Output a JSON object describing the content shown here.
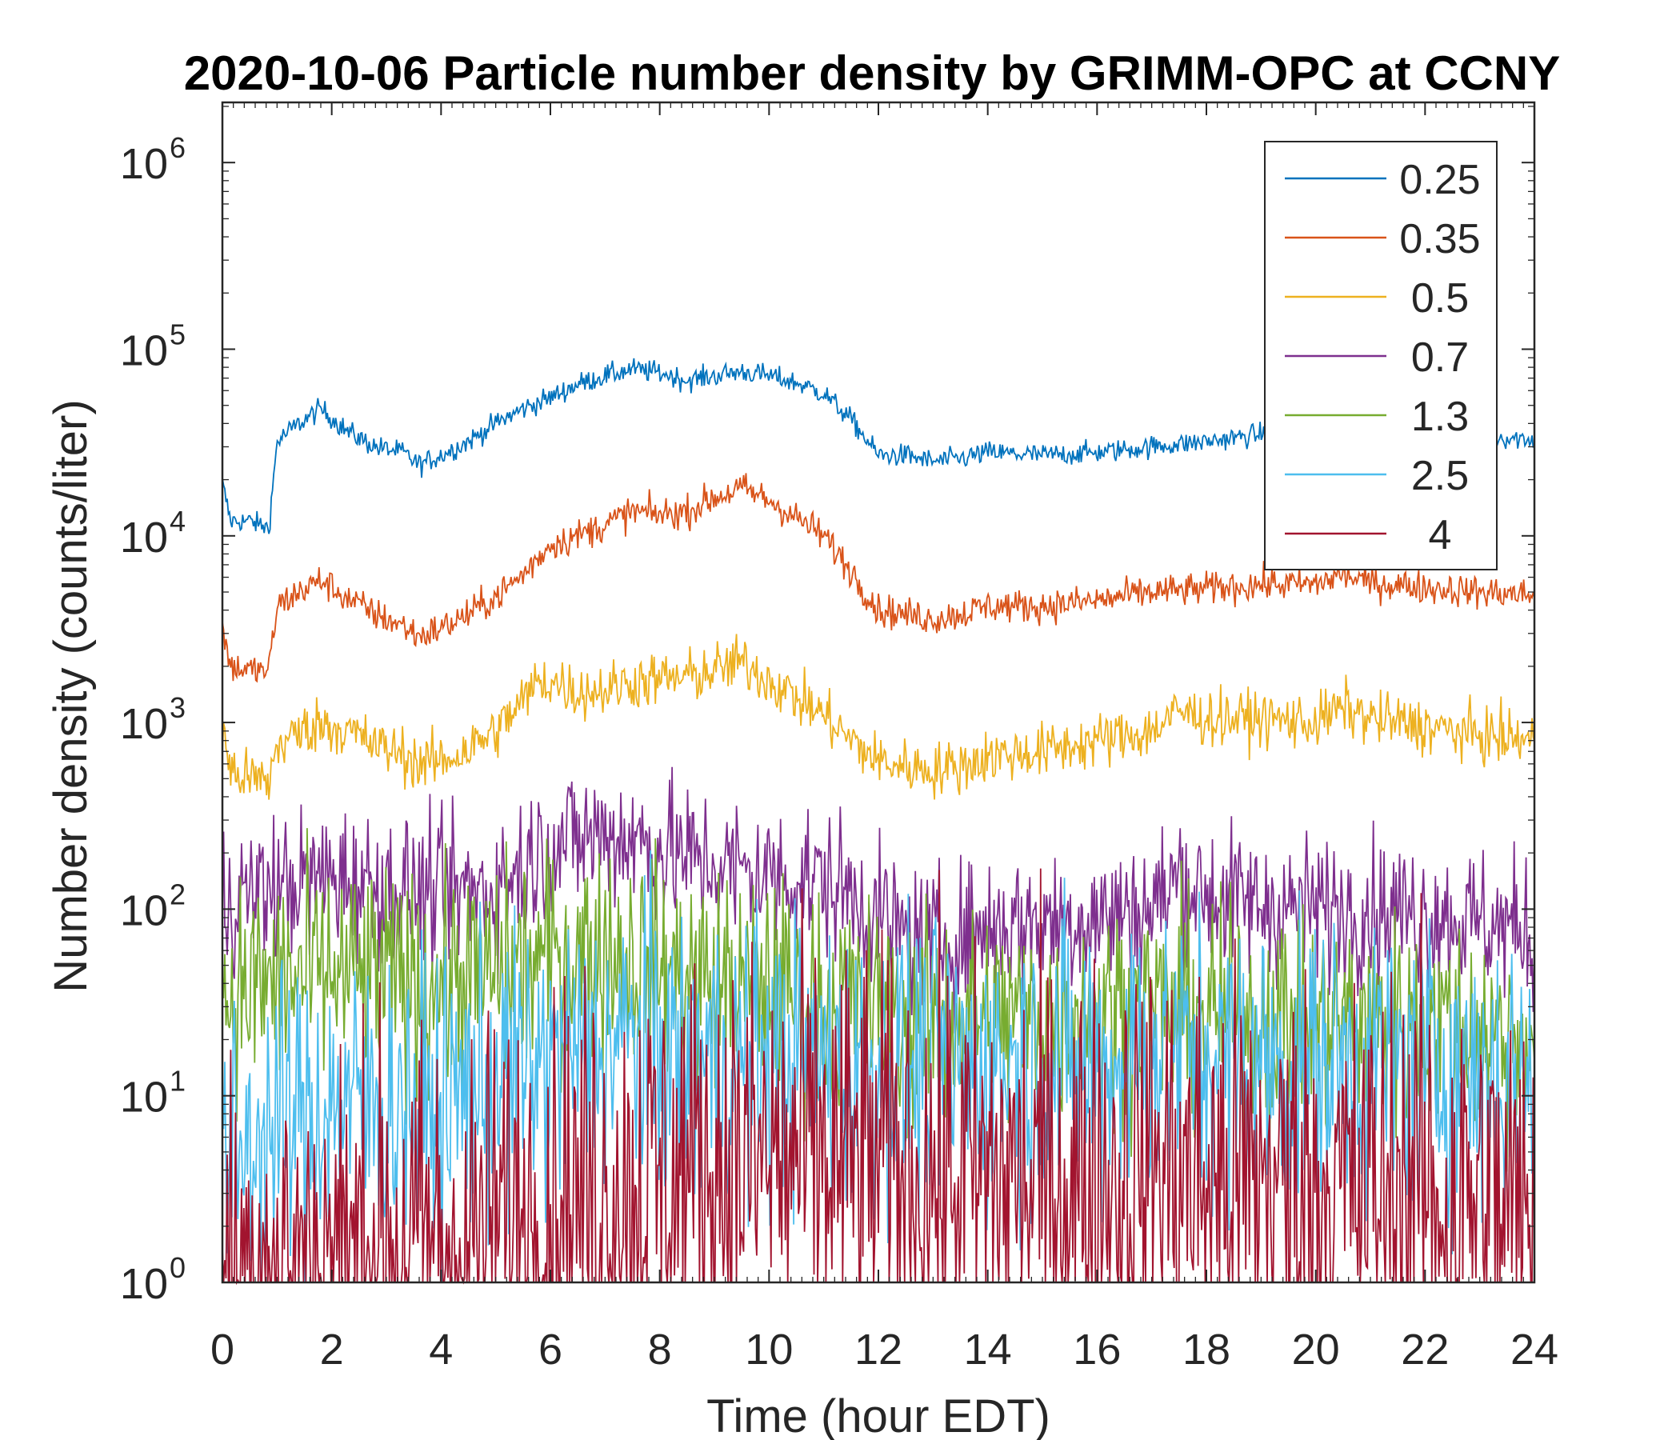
{
  "chart_data": {
    "type": "line",
    "title": "2020-10-06 Particle number density by GRIMM-OPC at CCNY",
    "xlabel": "Time (hour EDT)",
    "ylabel": "Number density (counts/liter)",
    "xlim": [
      0,
      24
    ],
    "ylim": [
      1,
      2000000
    ],
    "yscale": "log",
    "x_ticks": [
      0,
      2,
      4,
      6,
      8,
      10,
      12,
      14,
      16,
      18,
      20,
      22,
      24
    ],
    "x_tick_labels": [
      "0",
      "2",
      "4",
      "6",
      "8",
      "10",
      "12",
      "14",
      "16",
      "18",
      "20",
      "22",
      "24"
    ],
    "y_ticks": [
      1,
      10,
      100,
      1000,
      10000,
      100000,
      1000000
    ],
    "y_tick_labels": [
      {
        "base": "10",
        "exp": "0"
      },
      {
        "base": "10",
        "exp": "1"
      },
      {
        "base": "10",
        "exp": "2"
      },
      {
        "base": "10",
        "exp": "3"
      },
      {
        "base": "10",
        "exp": "4"
      },
      {
        "base": "10",
        "exp": "5"
      },
      {
        "base": "10",
        "exp": "6"
      }
    ],
    "legend_position": "top-right",
    "series": [
      {
        "name": "0.25",
        "color": "#0072BD",
        "noise": 0.03,
        "x": [
          0,
          0.15,
          0.5,
          0.85,
          1.0,
          1.3,
          1.8,
          2.3,
          2.8,
          3.3,
          3.6,
          4.0,
          4.5,
          5.0,
          5.5,
          6.0,
          6.5,
          7.0,
          7.5,
          8.0,
          8.5,
          9.0,
          9.5,
          10.0,
          10.5,
          11.0,
          11.5,
          12.0,
          12.5,
          13.0,
          13.5,
          14.0,
          15.0,
          16.0,
          17.0,
          18.0,
          19.0,
          20.0,
          21.0,
          22.0,
          23.0,
          24.0
        ],
        "values": [
          19000,
          12000,
          12000,
          11000,
          32000,
          38000,
          48000,
          36000,
          30000,
          28000,
          24000,
          27000,
          32000,
          40000,
          48000,
          55000,
          65000,
          72000,
          78000,
          75000,
          68000,
          72000,
          76000,
          72000,
          66000,
          58000,
          42000,
          27000,
          27000,
          25000,
          26000,
          28000,
          27000,
          28000,
          30000,
          32000,
          35000,
          34000,
          35000,
          34000,
          34000,
          33000
        ]
      },
      {
        "name": "0.35",
        "color": "#D95319",
        "noise": 0.045,
        "x": [
          0,
          0.15,
          0.5,
          0.85,
          1.0,
          1.3,
          1.8,
          2.3,
          2.8,
          3.3,
          3.6,
          4.0,
          4.5,
          5.0,
          5.5,
          6.0,
          6.5,
          7.0,
          7.5,
          8.0,
          8.5,
          9.0,
          9.5,
          10.0,
          10.5,
          11.0,
          11.5,
          12.0,
          12.5,
          13.0,
          13.5,
          14.0,
          15.0,
          16.0,
          17.0,
          18.0,
          19.0,
          20.0,
          20.5,
          21.0,
          22.0,
          23.0,
          24.0
        ],
        "values": [
          3200,
          2000,
          1900,
          1900,
          4200,
          4800,
          5800,
          4600,
          3800,
          3300,
          2900,
          3200,
          3800,
          4700,
          6200,
          9000,
          10000,
          11500,
          13500,
          13000,
          13500,
          16000,
          18000,
          15500,
          12500,
          10000,
          6500,
          4000,
          3800,
          3600,
          3800,
          4200,
          4200,
          4500,
          5000,
          5200,
          5500,
          5500,
          6200,
          5600,
          5300,
          5000,
          4800
        ]
      },
      {
        "name": "0.5",
        "color": "#EDB120",
        "noise": 0.075,
        "x": [
          0,
          0.15,
          0.5,
          0.85,
          1.0,
          1.3,
          1.8,
          2.3,
          2.8,
          3.3,
          3.6,
          4.0,
          4.5,
          5.0,
          5.5,
          5.8,
          6.2,
          6.5,
          7.0,
          7.5,
          8.0,
          8.5,
          9.0,
          9.5,
          10.0,
          10.5,
          11.0,
          11.5,
          12.0,
          12.5,
          13.0,
          13.5,
          14.0,
          15.0,
          16.0,
          17.0,
          17.5,
          18.0,
          19.0,
          20.0,
          20.5,
          21.0,
          22.0,
          23.0,
          24.0
        ],
        "values": [
          900,
          550,
          500,
          480,
          750,
          850,
          1000,
          900,
          750,
          680,
          600,
          620,
          720,
          900,
          1300,
          1700,
          1600,
          1450,
          1500,
          1650,
          1700,
          1750,
          1900,
          2100,
          1700,
          1350,
          1100,
          800,
          620,
          580,
          560,
          580,
          660,
          700,
          800,
          900,
          1150,
          1050,
          1050,
          1000,
          1200,
          1050,
          950,
          850,
          800
        ]
      },
      {
        "name": "0.7",
        "color": "#7E2F8E",
        "noise": 0.2,
        "x": [
          0,
          1.0,
          2.0,
          3.0,
          4.0,
          5.0,
          5.5,
          6.0,
          6.5,
          7.0,
          7.5,
          8.0,
          8.5,
          9.0,
          9.5,
          10.0,
          10.5,
          11.0,
          11.5,
          12.0,
          12.5,
          13.0,
          13.5,
          14.0,
          15.0,
          16.0,
          17.0,
          17.5,
          18.0,
          19.0,
          20.0,
          21.0,
          22.0,
          23.0,
          24.0
        ],
        "values": [
          110,
          130,
          150,
          130,
          120,
          130,
          170,
          220,
          240,
          250,
          240,
          210,
          190,
          170,
          160,
          150,
          150,
          140,
          120,
          90,
          70,
          65,
          70,
          80,
          85,
          90,
          100,
          150,
          120,
          105,
          100,
          100,
          95,
          85,
          75
        ]
      },
      {
        "name": "1.3",
        "color": "#77AC30",
        "noise": 0.3,
        "x": [
          0,
          1.0,
          2.0,
          3.0,
          4.0,
          5.0,
          6.0,
          7.0,
          8.0,
          9.0,
          10.0,
          11.0,
          12.0,
          13.0,
          14.0,
          15.0,
          16.0,
          17.0,
          18.0,
          19.0,
          20.0,
          21.0,
          22.0,
          23.0,
          24.0
        ],
        "values": [
          35,
          40,
          45,
          42,
          40,
          45,
          55,
          60,
          48,
          40,
          38,
          32,
          28,
          25,
          25,
          27,
          28,
          30,
          27,
          26,
          25,
          25,
          24,
          22,
          20
        ]
      },
      {
        "name": "2.5",
        "color": "#4DBEEE",
        "noise": 0.4,
        "x": [
          0,
          0.3,
          1.0,
          2.0,
          3.0,
          4.0,
          5.0,
          6.0,
          7.0,
          7.5,
          8.0,
          9.0,
          10.0,
          11.0,
          12.0,
          13.0,
          14.0,
          15.0,
          16.0,
          17.0,
          18.0,
          19.0,
          20.0,
          21.0,
          22.0,
          23.0,
          24.0
        ],
        "values": [
          4,
          5,
          7,
          9,
          9,
          9,
          12,
          15,
          18,
          20,
          17,
          16,
          15,
          15,
          14,
          14,
          14,
          15,
          15,
          16,
          16,
          15,
          14,
          15,
          14,
          13,
          11
        ]
      },
      {
        "name": "4",
        "color": "#A2142F",
        "noise": 0.6,
        "x": [
          0,
          1.0,
          2.0,
          3.0,
          4.0,
          5.0,
          6.0,
          7.0,
          8.0,
          9.0,
          10.0,
          11.0,
          12.0,
          13.0,
          14.0,
          15.0,
          16.0,
          17.0,
          18.0,
          19.0,
          20.0,
          21.0,
          22.0,
          23.0,
          24.0
        ],
        "values": [
          1,
          1.2,
          1.4,
          1.5,
          1.6,
          2,
          2.5,
          3,
          3.5,
          4,
          4.5,
          4.5,
          4,
          3.5,
          3.5,
          3.5,
          3.5,
          4,
          3.5,
          3.5,
          3.2,
          3,
          3,
          2.8,
          2
        ]
      }
    ]
  }
}
